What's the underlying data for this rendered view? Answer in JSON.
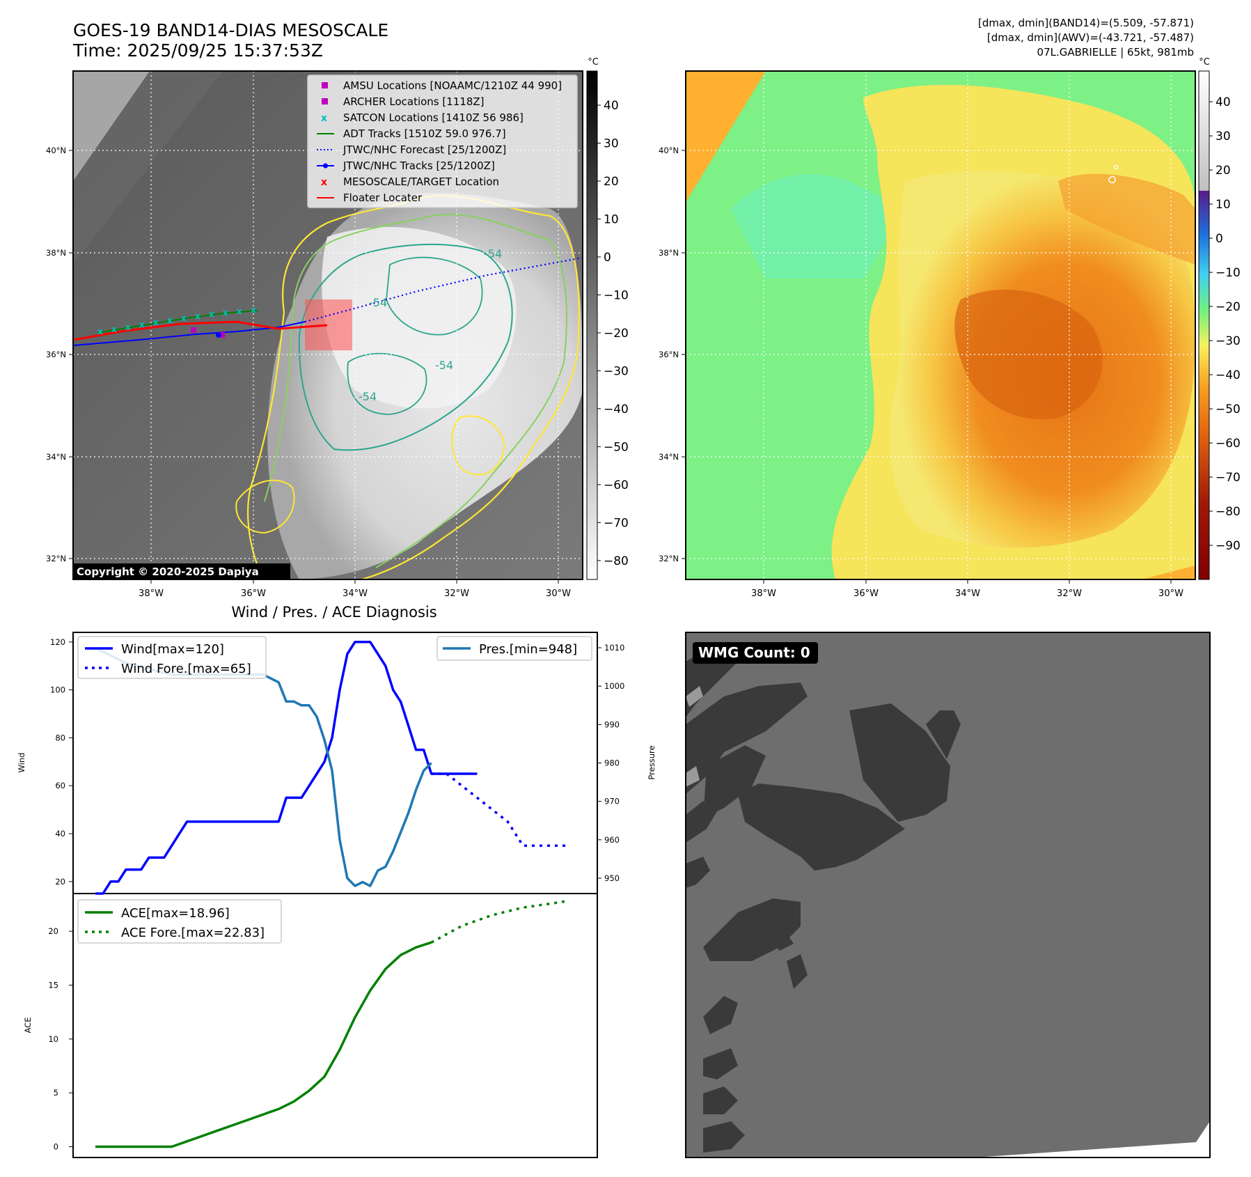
{
  "header": {
    "title_line1": "GOES-19 BAND14-DIAS MESOSCALE",
    "title_line2": "Time: 2025/09/25 15:37:53Z",
    "stats_line1": "[dmax, dmin](BAND14)=(5.509, -57.871)",
    "stats_line2": "[dmax, dmin](AWV)=(-43.721, -57.487)",
    "stats_line3": "07L.GABRIELLE | 65kt, 981mb",
    "copyright": "Copyright © 2020-2025 Dapiya",
    "cb_unit": "°C"
  },
  "map_axes": {
    "lon_ticks": [
      "38°W",
      "36°W",
      "34°W",
      "32°W",
      "30°W"
    ],
    "lat_ticks": [
      "40°N",
      "38°N",
      "36°N",
      "34°N",
      "32°N"
    ],
    "lon_range": [
      -39.5,
      -29.5
    ],
    "lat_range": [
      31.6,
      41.6
    ]
  },
  "colorbar_gray": {
    "ticks": [
      "40",
      "30",
      "20",
      "10",
      "0",
      "−10",
      "−20",
      "−30",
      "−40",
      "−50",
      "−60",
      "−70",
      "−80"
    ],
    "range": [
      -85,
      49
    ]
  },
  "colorbar_color": {
    "ticks": [
      "40",
      "30",
      "20",
      "10",
      "0",
      "−10",
      "−20",
      "−30",
      "−40",
      "−50",
      "−60",
      "−70",
      "−80",
      "−90"
    ],
    "range": [
      -100,
      49
    ]
  },
  "contour_labels": [
    "-54",
    "-54",
    "-54",
    "-54"
  ],
  "map_legend": [
    {
      "label": "AMSU Locations [NOAAMC/1210Z 44 990]",
      "marker": "square",
      "color": "#bf00bf"
    },
    {
      "label": "ARCHER Locations [1118Z]",
      "marker": "square",
      "color": "#bf00bf"
    },
    {
      "label": "SATCON Locations [1410Z 56 986]",
      "marker": "x",
      "color": "#00bfbf"
    },
    {
      "label": "ADT Tracks [1510Z 59.0 976.7]",
      "marker": "line",
      "color": "#008000"
    },
    {
      "label": "JTWC/NHC Forecast [25/1200Z]",
      "marker": "dotted",
      "color": "#0000ff"
    },
    {
      "label": "JTWC/NHC Tracks [25/1200Z]",
      "marker": "line-dot",
      "color": "#0000ff"
    },
    {
      "label": "MESOSCALE/TARGET Location",
      "marker": "x",
      "color": "#ff0000"
    },
    {
      "label": "Floater Locater",
      "marker": "line",
      "color": "#ff0000"
    }
  ],
  "diagnosis": {
    "title": "Wind / Pres. / ACE Diagnosis",
    "wind_ylabel": "Wind",
    "pres_ylabel": "Pressure",
    "ace_ylabel": "ACE",
    "wind_ticks": [
      "20",
      "40",
      "60",
      "80",
      "100",
      "120"
    ],
    "pres_ticks": [
      "950",
      "960",
      "970",
      "980",
      "990",
      "1000",
      "1010"
    ],
    "ace_ticks": [
      "0",
      "5",
      "10",
      "15",
      "20"
    ],
    "legend_wind": "Wind[max=120]",
    "legend_wind_fore": "Wind Fore.[max=65]",
    "legend_pres": "Pres.[min=948]",
    "legend_ace": "ACE[max=18.96]",
    "legend_ace_fore": "ACE Fore.[max=22.83]"
  },
  "wmg": {
    "label": "WMG Count: 0"
  },
  "colors": {
    "wind": "#0000ff",
    "pres": "#1f77b4",
    "ace": "#008000",
    "contour_yellow": "#ffe633",
    "contour_green": "#88d060",
    "contour_teal": "#2ca58d",
    "wmg_bg": "#6e6e6e",
    "wmg_dark": "#3a3a3a"
  },
  "chart_data": [
    {
      "type": "line",
      "title": "Wind / Pres. / ACE Diagnosis",
      "ylabel": "Wind",
      "ylim": [
        15,
        124
      ],
      "series": [
        {
          "name": "Wind[max=120]",
          "x": [
            0,
            1,
            2,
            3,
            4,
            5,
            6,
            7,
            8,
            9,
            10,
            11,
            12,
            13,
            14,
            15,
            16,
            17,
            18,
            19,
            20,
            21,
            22,
            23,
            24,
            25,
            26,
            27,
            28,
            29,
            30,
            31,
            32,
            33,
            34,
            35,
            36,
            37,
            38,
            39,
            40,
            41,
            42,
            43,
            44,
            45,
            46,
            47,
            48,
            49,
            50
          ],
          "values": [
            15,
            15,
            20,
            20,
            25,
            25,
            25,
            30,
            30,
            30,
            35,
            40,
            45,
            45,
            45,
            45,
            45,
            45,
            45,
            45,
            45,
            45,
            45,
            45,
            45,
            55,
            55,
            55,
            60,
            65,
            70,
            80,
            100,
            115,
            120,
            120,
            120,
            115,
            110,
            100,
            95,
            85,
            75,
            75,
            65,
            65,
            65,
            65,
            65,
            65,
            65
          ]
        },
        {
          "name": "Wind Fore.[max=65]",
          "x": [
            44,
            46,
            48,
            50,
            52,
            54,
            56,
            58,
            60,
            62
          ],
          "values": [
            65,
            65,
            60,
            55,
            50,
            45,
            35,
            35,
            35,
            35
          ]
        },
        {
          "name": "Pres.[min=948]",
          "axis": "right",
          "ylim": [
            946,
            1014
          ],
          "x": [
            0,
            2,
            4,
            6,
            8,
            10,
            12,
            14,
            16,
            18,
            20,
            22,
            24,
            25,
            26,
            27,
            28,
            29,
            30,
            31,
            32,
            33,
            34,
            35,
            36,
            37,
            38,
            39,
            40,
            41,
            42,
            43,
            44
          ],
          "values": [
            1010,
            1008,
            1006,
            1005,
            1004,
            1003,
            1003,
            1003,
            1003,
            1003,
            1003,
            1003,
            1001,
            996,
            996,
            995,
            995,
            992,
            986,
            978,
            960,
            950,
            948,
            949,
            948,
            952,
            953,
            957,
            962,
            967,
            973,
            978,
            980
          ]
        },
        {
          "name": "ACE[max=18.96]",
          "axis": "ace",
          "ylim": [
            -1,
            23.5
          ],
          "x": [
            0,
            4,
            8,
            10,
            12,
            14,
            16,
            18,
            20,
            22,
            24,
            26,
            28,
            30,
            32,
            34,
            36,
            38,
            40,
            42,
            44
          ],
          "values": [
            0,
            0,
            0,
            0,
            0.5,
            1.0,
            1.5,
            2.0,
            2.5,
            3.0,
            3.5,
            4.2,
            5.2,
            6.5,
            9.0,
            12.0,
            14.5,
            16.5,
            17.8,
            18.5,
            18.96
          ]
        },
        {
          "name": "ACE Fore.[max=22.83]",
          "axis": "ace",
          "x": [
            44,
            48,
            52,
            56,
            60,
            62
          ],
          "values": [
            18.96,
            20.5,
            21.5,
            22.2,
            22.6,
            22.83
          ]
        }
      ]
    }
  ]
}
